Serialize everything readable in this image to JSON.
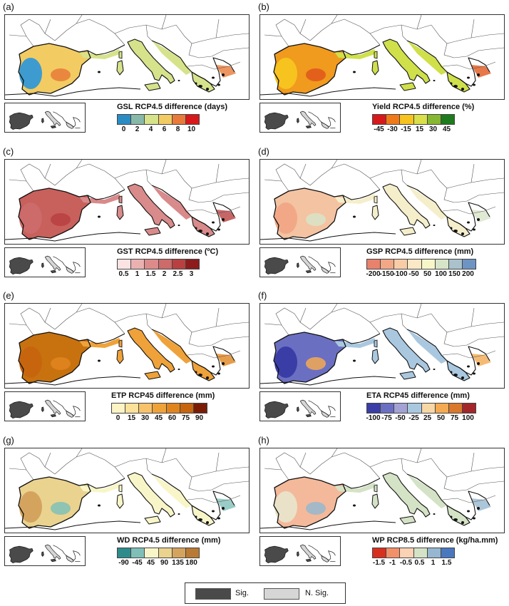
{
  "panels": [
    {
      "letter": "(a)",
      "title": "GSL RCP4.5 difference (days)",
      "ticks": [
        "0",
        "2",
        "4",
        "6",
        "8",
        "10"
      ],
      "colors": [
        "#2b8cc4",
        "#88b9a8",
        "#d7e38b",
        "#f2cc62",
        "#e97a3a",
        "#d7191c"
      ],
      "fill_main": "#d7e38b",
      "fill_iberia": "#f2cc62",
      "fill_west": "#3d9bd0",
      "fill_patch": "#e97a3a"
    },
    {
      "letter": "(b)",
      "title": "Yield RCP4.5 difference (%)",
      "ticks": [
        "-45",
        "-30",
        "-15",
        "15",
        "30",
        "45"
      ],
      "colors": [
        "#d7191c",
        "#f07a1a",
        "#f7c31e",
        "#d9e04a",
        "#86b832",
        "#1e7b1e"
      ],
      "fill_main": "#cfe04a",
      "fill_iberia": "#f09a1e",
      "fill_west": "#f7c31e",
      "fill_patch": "#e0561c"
    },
    {
      "letter": "(c)",
      "title": "GST RCP4.5 difference (ºC)",
      "ticks": [
        "0.5",
        "1",
        "1.5",
        "2",
        "2.5",
        "3"
      ],
      "colors": [
        "#fbe3e3",
        "#ebb1b1",
        "#dd8a8a",
        "#cd6a6a",
        "#b94040",
        "#8e1b1b"
      ],
      "fill_main": "#d98a8a",
      "fill_iberia": "#c8605c",
      "fill_west": "#cd6a6a",
      "fill_patch": "#b94040"
    },
    {
      "letter": "(d)",
      "title": "GSP RCP4.5 difference (mm)",
      "ticks": [
        "-200",
        "-150",
        "-100",
        "-50",
        "50",
        "100",
        "150",
        "200"
      ],
      "colors": [
        "#e8826c",
        "#f2a886",
        "#f8cca6",
        "#fbe8c6",
        "#f6f6c8",
        "#d8e4c8",
        "#a9c2cc",
        "#6e94c4"
      ],
      "fill_main": "#f5eecb",
      "fill_iberia": "#f4c3a1",
      "fill_west": "#f2a886",
      "fill_patch": "#d8e4c8"
    },
    {
      "letter": "(e)",
      "title": "ETP RCP45 difference (mm)",
      "ticks": [
        "0",
        "15",
        "30",
        "45",
        "60",
        "75",
        "90"
      ],
      "colors": [
        "#fcf4c4",
        "#fbe19a",
        "#f7c26a",
        "#efa23a",
        "#e0851e",
        "#c7650f",
        "#7a1b06"
      ],
      "fill_main": "#efa23a",
      "fill_iberia": "#c7720f",
      "fill_west": "#c7650f",
      "fill_patch": "#e0851e"
    },
    {
      "letter": "(f)",
      "title": "ETA RCP45 difference (mm)",
      "ticks": [
        "-100",
        "-75",
        "-50",
        "-25",
        "25",
        "50",
        "75",
        "100"
      ],
      "colors": [
        "#3a3da6",
        "#6b6fc2",
        "#a4a2d4",
        "#a9c8e0",
        "#f7d7a6",
        "#f3aa52",
        "#d9782a",
        "#a3262a"
      ],
      "fill_main": "#a9c8e0",
      "fill_iberia": "#6b6fc2",
      "fill_west": "#3a3da6",
      "fill_patch": "#f3aa52"
    },
    {
      "letter": "(g)",
      "title": "WD RCP4.5 difference (mm)",
      "ticks": [
        "-90",
        "-45",
        "45",
        "90",
        "135",
        "180"
      ],
      "colors": [
        "#2e8b8b",
        "#7fbfb8",
        "#f8f6c8",
        "#ead38e",
        "#d4a45e",
        "#b97a35"
      ],
      "fill_main": "#f8f6c8",
      "fill_iberia": "#ead38e",
      "fill_west": "#d4a45e",
      "fill_patch": "#7fbfb8"
    },
    {
      "letter": "(h)",
      "title": "WP RCP8.5 difference (kg/ha.mm)",
      "ticks": [
        "-1.5",
        "-1",
        "-0.5",
        "0.5",
        "1",
        "1.5"
      ],
      "colors": [
        "#d7301f",
        "#f2906a",
        "#fbd2b4",
        "#d4e2c6",
        "#96b7cf",
        "#4a78bf"
      ],
      "fill_main": "#d4e2c6",
      "fill_iberia": "#f4b99a",
      "fill_west": "#e9e2c8",
      "fill_patch": "#96b7cf"
    }
  ],
  "significance_legend": {
    "sig_label": "Sig.",
    "nsig_label": "N. Sig.",
    "sig_color": "#4a4a4a",
    "nsig_color": "#d6d6d6"
  }
}
